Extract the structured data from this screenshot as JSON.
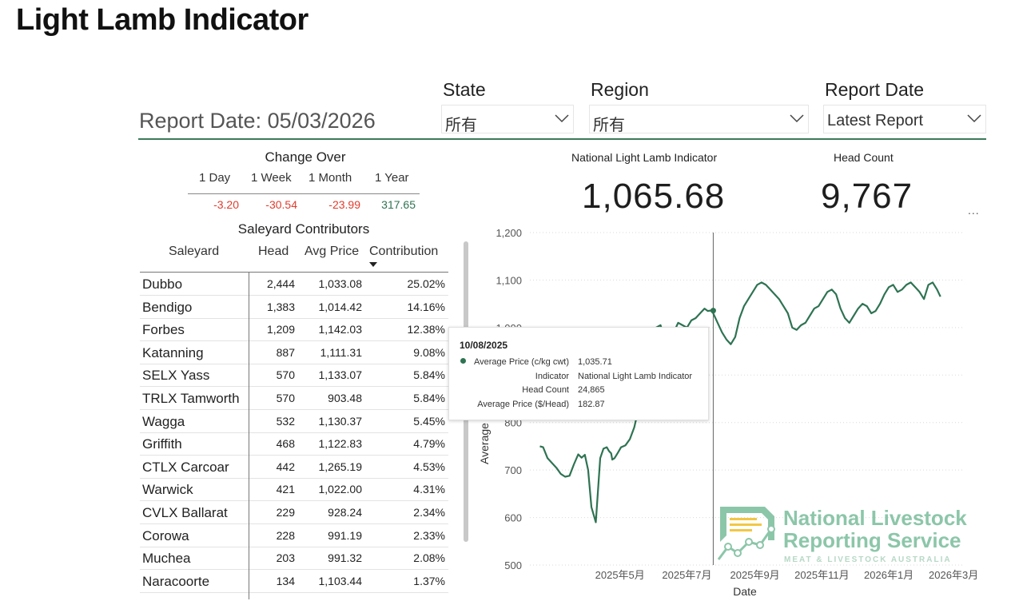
{
  "page": {
    "title": "Light Lamb Indicator"
  },
  "report_date_label": "Report Date: 05/03/2026",
  "filters": {
    "state": {
      "label": "State",
      "value": "所有"
    },
    "region": {
      "label": "Region",
      "value": "所有"
    },
    "report_date": {
      "label": "Report Date",
      "value": "Latest Report"
    }
  },
  "change_over": {
    "title": "Change Over",
    "periods": [
      "1 Day",
      "1 Week",
      "1 Month",
      "1 Year"
    ],
    "values": [
      "-3.20",
      "-30.54",
      "-23.99",
      "317.65"
    ],
    "colors": [
      "#e03c2d",
      "#e03c2d",
      "#e03c2d",
      "#2e7352"
    ]
  },
  "contributors": {
    "title": "Saleyard Contributors",
    "columns": [
      "Saleyard",
      "Head",
      "Avg Price",
      "Contribution"
    ],
    "sort": "Contribution descending",
    "rows": [
      [
        "Dubbo",
        "2,444",
        "1,033.08",
        "25.02%"
      ],
      [
        "Bendigo",
        "1,383",
        "1,014.42",
        "14.16%"
      ],
      [
        "Forbes",
        "1,209",
        "1,142.03",
        "12.38%"
      ],
      [
        "Katanning",
        "887",
        "1,111.31",
        "9.08%"
      ],
      [
        "SELX Yass",
        "570",
        "1,133.07",
        "5.84%"
      ],
      [
        "TRLX Tamworth",
        "570",
        "903.48",
        "5.84%"
      ],
      [
        "Wagga",
        "532",
        "1,130.37",
        "5.45%"
      ],
      [
        "Griffith",
        "468",
        "1,122.83",
        "4.79%"
      ],
      [
        "CTLX Carcoar",
        "442",
        "1,265.19",
        "4.53%"
      ],
      [
        "Warwick",
        "421",
        "1,022.00",
        "4.31%"
      ],
      [
        "CVLX Ballarat",
        "229",
        "928.24",
        "2.34%"
      ],
      [
        "Corowa",
        "228",
        "991.19",
        "2.33%"
      ],
      [
        "Muchea",
        "203",
        "991.32",
        "2.08%"
      ],
      [
        "Naracoorte",
        "134",
        "1,103.44",
        "1.37%"
      ]
    ]
  },
  "kpis": {
    "indicator": {
      "label": "National Light Lamb Indicator",
      "value": "1,065.68"
    },
    "head_count": {
      "label": "Head Count",
      "value": "9,767"
    },
    "more_label": "..."
  },
  "chart_data": {
    "type": "line",
    "xlabel": "Date",
    "ylabel": "Average",
    "ylim": [
      500,
      1200
    ],
    "yticks": [
      "1,200",
      "1,100",
      "1,000",
      "900",
      "800",
      "700",
      "600",
      "500"
    ],
    "xticks": [
      "2025年5月",
      "2025年7月",
      "2025年9月",
      "2025年11月",
      "2026年1月",
      "2026年3月"
    ],
    "grid": true,
    "line_color": "#2e7352",
    "series": [
      {
        "x": [
          "2025-03-05",
          "2025-03-08",
          "2025-03-12",
          "2025-03-16",
          "2025-03-20",
          "2025-03-24",
          "2025-03-28",
          "2025-04-01",
          "2025-04-05",
          "2025-04-09",
          "2025-04-12",
          "2025-04-15",
          "2025-04-18",
          "2025-04-21",
          "2025-04-25",
          "2025-04-29",
          "2025-05-02",
          "2025-05-05",
          "2025-05-07",
          "2025-05-09",
          "2025-05-10",
          "2025-05-12",
          "2025-05-15",
          "2025-05-18",
          "2025-05-22",
          "2025-05-26",
          "2025-05-30",
          "2025-06-03",
          "2025-06-07",
          "2025-06-11",
          "2025-06-15",
          "2025-06-19",
          "2025-06-23",
          "2025-06-27",
          "2025-07-01",
          "2025-07-05",
          "2025-07-09",
          "2025-07-13",
          "2025-07-17",
          "2025-07-21",
          "2025-07-25",
          "2025-07-29",
          "2025-08-02",
          "2025-08-05",
          "2025-08-08",
          "2025-08-10",
          "2025-08-14",
          "2025-08-18",
          "2025-08-22",
          "2025-08-26",
          "2025-08-30",
          "2025-09-03",
          "2025-09-07",
          "2025-09-11",
          "2025-09-15",
          "2025-09-19",
          "2025-09-23",
          "2025-09-27",
          "2025-10-01",
          "2025-10-05",
          "2025-10-09",
          "2025-10-13",
          "2025-10-17",
          "2025-10-21",
          "2025-10-25",
          "2025-10-29",
          "2025-11-02",
          "2025-11-06",
          "2025-11-10",
          "2025-11-14",
          "2025-11-18",
          "2025-11-22",
          "2025-11-26",
          "2025-11-30",
          "2025-12-04",
          "2025-12-08",
          "2025-12-12",
          "2025-12-16",
          "2025-12-20",
          "2025-12-24",
          "2025-12-28",
          "2026-01-01",
          "2026-01-05",
          "2026-01-09",
          "2026-01-13",
          "2026-01-17",
          "2026-01-21",
          "2026-01-25",
          "2026-01-29",
          "2026-02-02",
          "2026-02-06",
          "2026-02-10",
          "2026-02-14",
          "2026-02-18",
          "2026-02-22",
          "2026-02-26",
          "2026-03-02",
          "2026-03-05"
        ],
        "y": [
          750,
          748,
          725,
          715,
          705,
          692,
          686,
          688,
          712,
          733,
          726,
          732,
          700,
          622,
          590,
          725,
          745,
          748,
          740,
          735,
          722,
          725,
          736,
          748,
          752,
          765,
          790,
          830,
          880,
          930,
          990,
          1000,
          1005,
          975,
          965,
          990,
          1010,
          1005,
          1000,
          1015,
          1020,
          1030,
          1040,
          1035,
          1036,
          1030,
          1010,
          990,
          975,
          965,
          980,
          1020,
          1045,
          1060,
          1075,
          1090,
          1095,
          1090,
          1080,
          1070,
          1060,
          1045,
          1030,
          1000,
          995,
          1005,
          1010,
          1025,
          1040,
          1045,
          1060,
          1075,
          1080,
          1070,
          1040,
          1020,
          1010,
          1025,
          1040,
          1050,
          1045,
          1030,
          1035,
          1050,
          1070,
          1085,
          1090,
          1075,
          1080,
          1090,
          1095,
          1085,
          1075,
          1060,
          1090,
          1095,
          1080,
          1065
        ]
      }
    ],
    "tooltip": {
      "date": "10/08/2025",
      "rows": [
        [
          "Average Price (c/kg cwt)",
          "1,035.71"
        ],
        [
          "Indicator",
          "National Light Lamb Indicator"
        ],
        [
          "Head Count",
          "24,865"
        ],
        [
          "Average Price ($/Head)",
          "182.87"
        ]
      ]
    }
  },
  "logo": {
    "line1": "National Livestock",
    "line2": "Reporting Service",
    "line3": "MEAT & LIVESTOCK AUSTRALIA"
  }
}
